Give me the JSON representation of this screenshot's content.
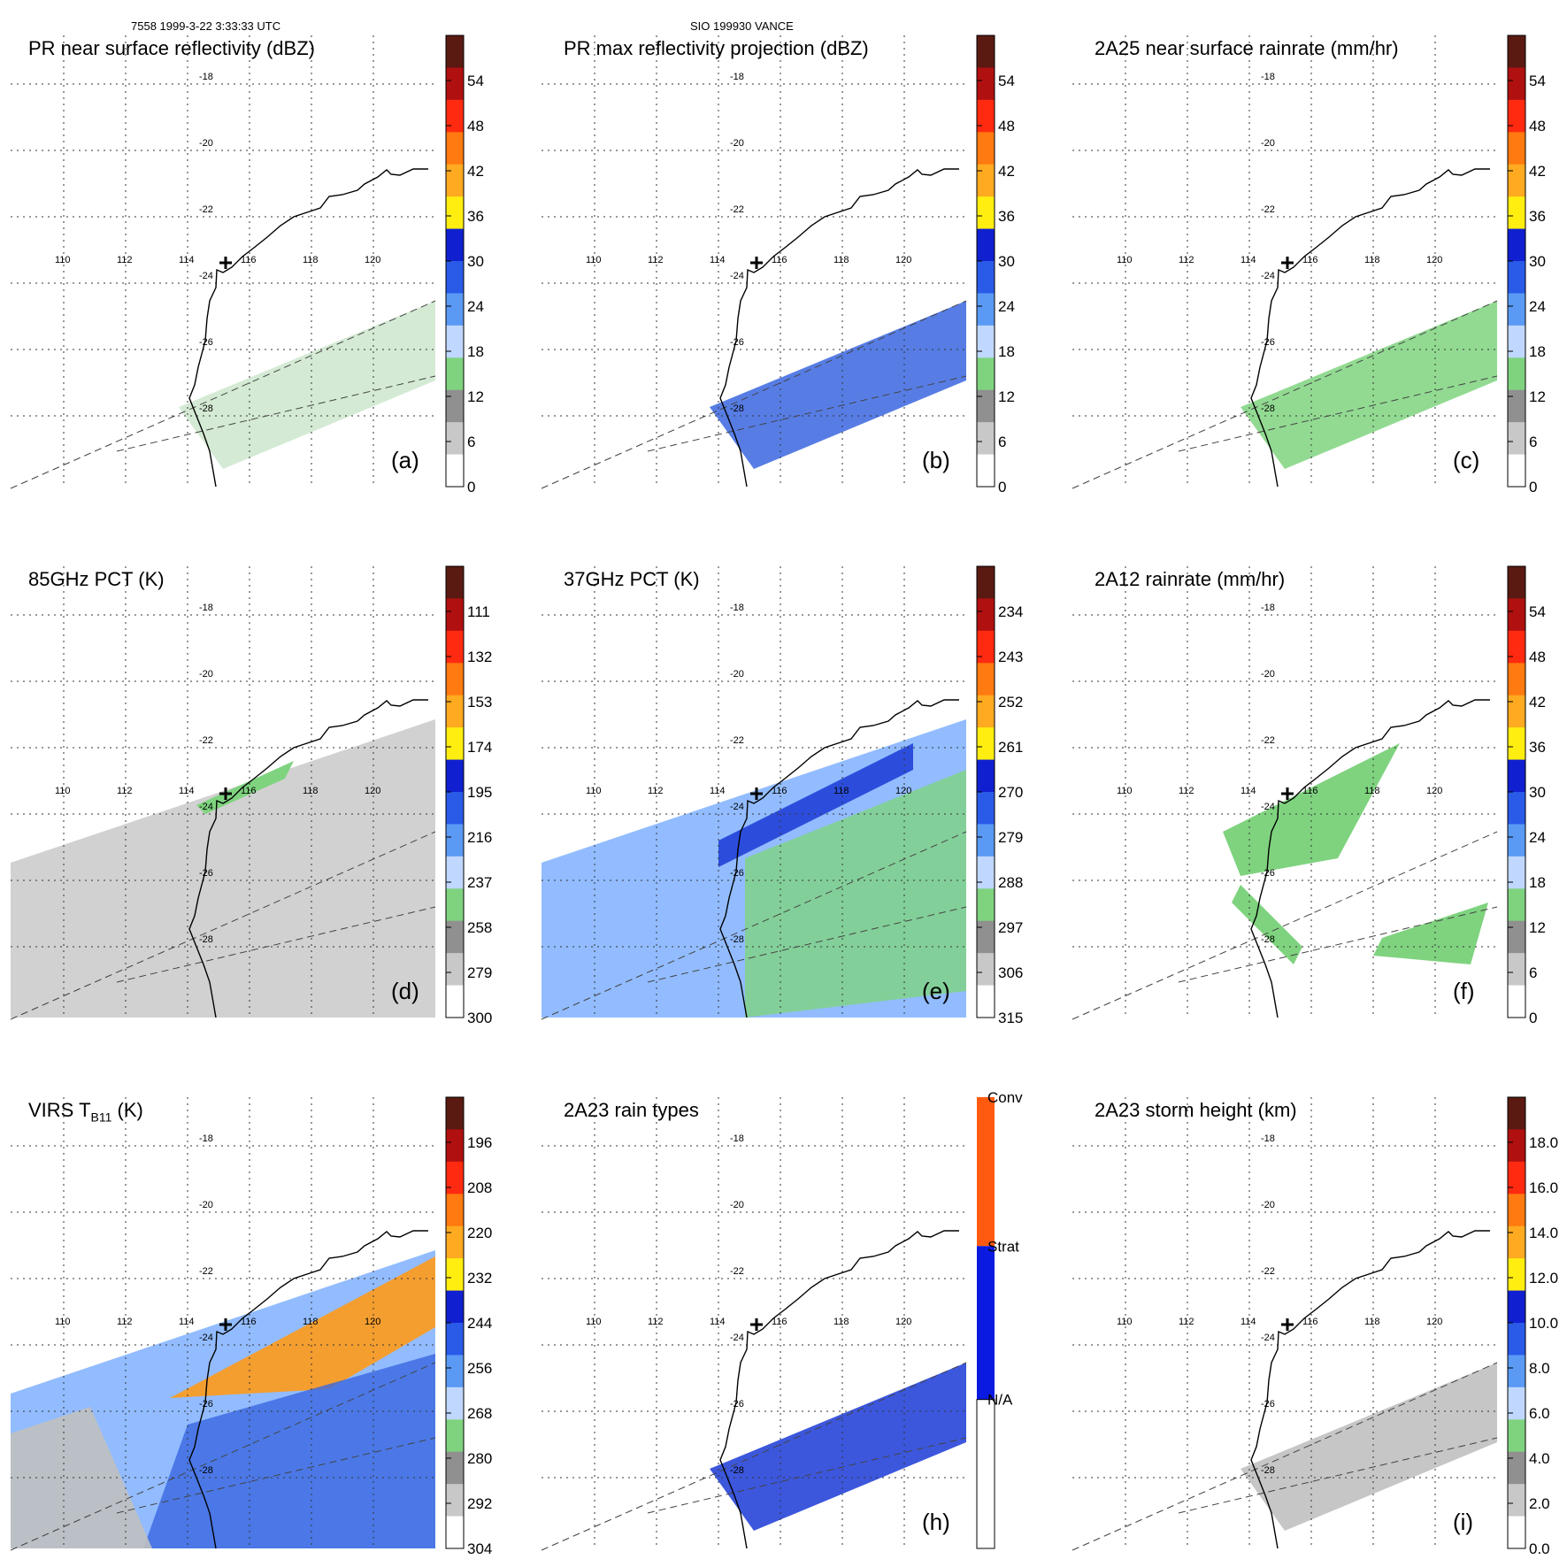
{
  "header": {
    "orbit_info": "7558 1999-3-22 3:33:33 UTC",
    "case_info": "SIO 199930 VANCE"
  },
  "map": {
    "lat_labels": [
      "-18",
      "-20",
      "-22",
      "-24",
      "-26",
      "-28"
    ],
    "lon_labels": [
      "110",
      "112",
      "114",
      "116",
      "118",
      "120"
    ],
    "colors": {
      "green": "#7fd37f",
      "blue": "#1a3ad6",
      "lightblue": "#7fb0ff",
      "orange": "#ff9a1a",
      "gray": "#9a9a9a"
    }
  },
  "panels": [
    {
      "id": "a",
      "title": "PR near surface reflectivity (dBZ)",
      "tag": "(a)",
      "colorbar": {
        "ticks": [
          "54",
          "48",
          "42",
          "36",
          "30",
          "24",
          "18",
          "12",
          "6",
          "0"
        ]
      }
    },
    {
      "id": "b",
      "title": "PR max reflectivity projection (dBZ)",
      "tag": "(b)",
      "colorbar": {
        "ticks": [
          "54",
          "48",
          "42",
          "36",
          "30",
          "24",
          "18",
          "12",
          "6",
          "0"
        ]
      }
    },
    {
      "id": "c",
      "title": "2A25 near surface rainrate (mm/hr)",
      "tag": "(c)",
      "colorbar": {
        "ticks": [
          "54",
          "48",
          "42",
          "36",
          "30",
          "24",
          "18",
          "12",
          "6",
          "0"
        ]
      }
    },
    {
      "id": "d",
      "title": "85GHz PCT (K)",
      "tag": "(d)",
      "colorbar": {
        "ticks": [
          "111",
          "132",
          "153",
          "174",
          "195",
          "216",
          "237",
          "258",
          "279",
          "300"
        ]
      }
    },
    {
      "id": "e",
      "title": "37GHz PCT (K)",
      "tag": "(e)",
      "colorbar": {
        "ticks": [
          "234",
          "243",
          "252",
          "261",
          "270",
          "279",
          "288",
          "297",
          "306",
          "315"
        ]
      }
    },
    {
      "id": "f",
      "title": "2A12 rainrate (mm/hr)",
      "tag": "(f)",
      "colorbar": {
        "ticks": [
          "54",
          "48",
          "42",
          "36",
          "30",
          "24",
          "18",
          "12",
          "6",
          "0"
        ]
      }
    },
    {
      "id": "g",
      "title": "VIRS T",
      "title_sub": "B11",
      "title_suffix": " (K)",
      "tag": "",
      "colorbar": {
        "ticks": [
          "196",
          "208",
          "220",
          "232",
          "244",
          "256",
          "268",
          "280",
          "292",
          "304"
        ]
      }
    },
    {
      "id": "h",
      "title": "2A23 rain types",
      "tag": "(h)",
      "colorbar": {
        "ticks": [
          "Conv",
          "Strat",
          "N/A"
        ]
      }
    },
    {
      "id": "i",
      "title": "2A23 storm height (km)",
      "tag": "(i)",
      "colorbar": {
        "ticks": [
          "18.0",
          "16.0",
          "14.0",
          "12.0",
          "10.0",
          "8.0",
          "6.0",
          "4.0",
          "2.0",
          "0.0"
        ]
      }
    }
  ]
}
